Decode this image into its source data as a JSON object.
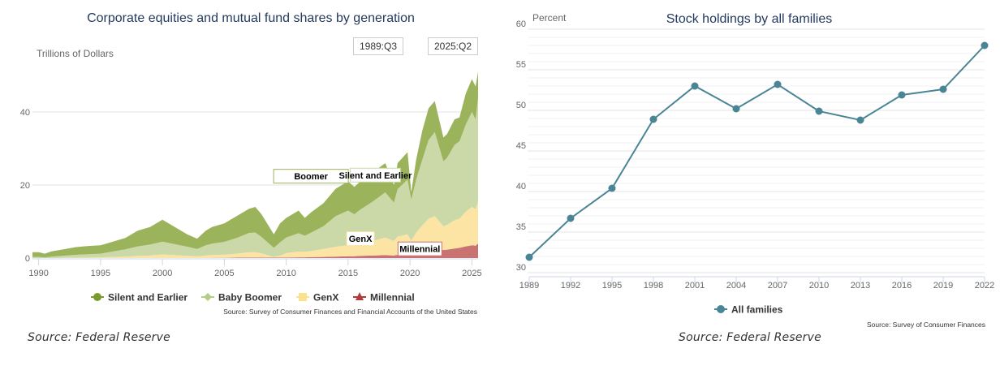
{
  "left_panel": {
    "caption": "Source: Federal Reserve",
    "date_range": {
      "start": "1989:Q3",
      "end": "2025:Q2"
    }
  },
  "right_panel": {
    "caption": "Source: Federal Reserve"
  },
  "chart_data": [
    {
      "type": "area",
      "stacked": true,
      "title": "Corporate equities and mutual fund shares by generation",
      "ylabel": "Trillions of Dollars",
      "xlabel": "",
      "xlim": [
        1989.5,
        2025.5
      ],
      "ylim": [
        0,
        52
      ],
      "x_ticks": [
        "1990",
        "1995",
        "2000",
        "2005",
        "2010",
        "2015",
        "2020",
        "2025"
      ],
      "y_ticks": [
        "0",
        "20",
        "40"
      ],
      "grid": true,
      "legend_position": "bottom-center",
      "source": "Source: Survey of Consumer Finances and Financial Accounts of the United States",
      "colors": {
        "Silent and Earlier": "#9bb35a",
        "Baby Boomer": "#cbd8a7",
        "GenX": "#fbe4a4",
        "Millennial": "#c97272"
      },
      "legend_marker_colors": {
        "Silent and Earlier": "#7a9a2c",
        "Baby Boomer": "#b5cb8a",
        "GenX": "#fbe28f",
        "Millennial": "#b23b3b"
      },
      "legend_markers": {
        "Silent and Earlier": "circle",
        "Baby Boomer": "diamond",
        "GenX": "square",
        "Millennial": "triangle"
      },
      "annotations": [
        "Silent and Earlier",
        "Boomer",
        "GenX",
        "Millennial"
      ],
      "x": [
        1989.5,
        1990,
        1990.5,
        1991,
        1992,
        1993,
        1994,
        1995,
        1996,
        1997,
        1998,
        1999,
        2000,
        2001,
        2002,
        2002.8,
        2003.5,
        2004,
        2005,
        2006,
        2007,
        2007.5,
        2008,
        2009,
        2009.5,
        2010,
        2011,
        2011.5,
        2012,
        2013,
        2014,
        2015,
        2015.5,
        2016,
        2017,
        2018,
        2018.7,
        2019,
        2019.8,
        2020.1,
        2020.5,
        2021,
        2021.5,
        2022,
        2022.7,
        2023,
        2023.6,
        2024,
        2024.5,
        2025,
        2025.3,
        2025.5
      ],
      "series": [
        {
          "name": "Millennial",
          "values": [
            0,
            0,
            0,
            0,
            0,
            0,
            0,
            0,
            0,
            0,
            0,
            0,
            0,
            0,
            0,
            0,
            0,
            0.05,
            0.05,
            0.1,
            0.1,
            0.1,
            0.1,
            0.1,
            0.1,
            0.15,
            0.2,
            0.2,
            0.25,
            0.3,
            0.4,
            0.5,
            0.5,
            0.6,
            0.7,
            0.8,
            0.7,
            0.9,
            1.0,
            1.0,
            1.5,
            2.0,
            2.3,
            2.5,
            2.2,
            2.3,
            2.6,
            2.8,
            3.2,
            3.5,
            3.4,
            4.0
          ]
        },
        {
          "name": "GenX",
          "values": [
            0,
            0,
            0,
            0,
            0.05,
            0.1,
            0.15,
            0.2,
            0.3,
            0.4,
            0.6,
            0.7,
            1.0,
            0.8,
            0.6,
            0.5,
            0.7,
            0.8,
            0.9,
            1.1,
            1.5,
            1.5,
            1.2,
            0.2,
            0.6,
            1.2,
            1.6,
            1.5,
            1.7,
            2.2,
            2.7,
            3.0,
            2.8,
            3.2,
            4.0,
            4.8,
            4.0,
            5.0,
            5.5,
            3.8,
            5.5,
            7.0,
            8.5,
            9.0,
            6.5,
            6.8,
            7.8,
            8.0,
            9.5,
            10.5,
            10.0,
            11.5
          ]
        },
        {
          "name": "Baby Boomer",
          "values": [
            0.3,
            0.3,
            0.2,
            0.4,
            0.6,
            0.8,
            0.9,
            1.0,
            1.5,
            2.0,
            2.6,
            3.0,
            3.5,
            3.0,
            2.5,
            2.0,
            2.8,
            3.1,
            3.5,
            4.3,
            5.3,
            5.4,
            4.5,
            2.5,
            3.6,
            4.3,
            5.0,
            4.4,
            5.0,
            6.2,
            8.4,
            9.5,
            8.7,
            9.5,
            10.8,
            12.4,
            10.5,
            13.0,
            15.0,
            11.2,
            14.5,
            18.0,
            21.5,
            23.0,
            17.8,
            18.4,
            20.6,
            21.2,
            23.8,
            26.0,
            24.6,
            28.5
          ]
        },
        {
          "name": "Silent and Earlier",
          "values": [
            1.3,
            1.3,
            1.0,
            1.4,
            1.75,
            2.1,
            2.25,
            2.3,
            2.7,
            3.1,
            4.3,
            4.8,
            6.0,
            4.7,
            3.4,
            2.8,
            4.0,
            4.55,
            5.05,
            6.0,
            6.6,
            7.0,
            6.2,
            3.7,
            5.2,
            5.35,
            6.2,
            4.9,
            5.55,
            6.3,
            7.5,
            8.0,
            7.5,
            7.7,
            8.0,
            8.0,
            4.8,
            7.1,
            7.5,
            2.0,
            5.5,
            8.0,
            8.7,
            8.5,
            6.5,
            6.5,
            7.0,
            6.5,
            8.5,
            9.0,
            9.0,
            7.0
          ]
        }
      ]
    },
    {
      "type": "line",
      "title": "Stock holdings by all families",
      "ylabel": "Percent",
      "xlabel": "",
      "ylim": [
        30,
        60
      ],
      "y_ticks": [
        "30",
        "35",
        "40",
        "45",
        "50",
        "55",
        "60"
      ],
      "grid": true,
      "legend_position": "bottom-center",
      "source": "Source: Survey of Consumer Finances",
      "categories": [
        "1989",
        "1992",
        "1995",
        "1998",
        "2001",
        "2004",
        "2007",
        "2010",
        "2013",
        "2016",
        "2019",
        "2022"
      ],
      "series": [
        {
          "name": "All families",
          "color": "#4a8595",
          "values": [
            31.9,
            36.7,
            40.4,
            48.9,
            53.0,
            50.2,
            53.2,
            49.9,
            48.8,
            51.9,
            52.6,
            58.0
          ]
        }
      ]
    }
  ]
}
